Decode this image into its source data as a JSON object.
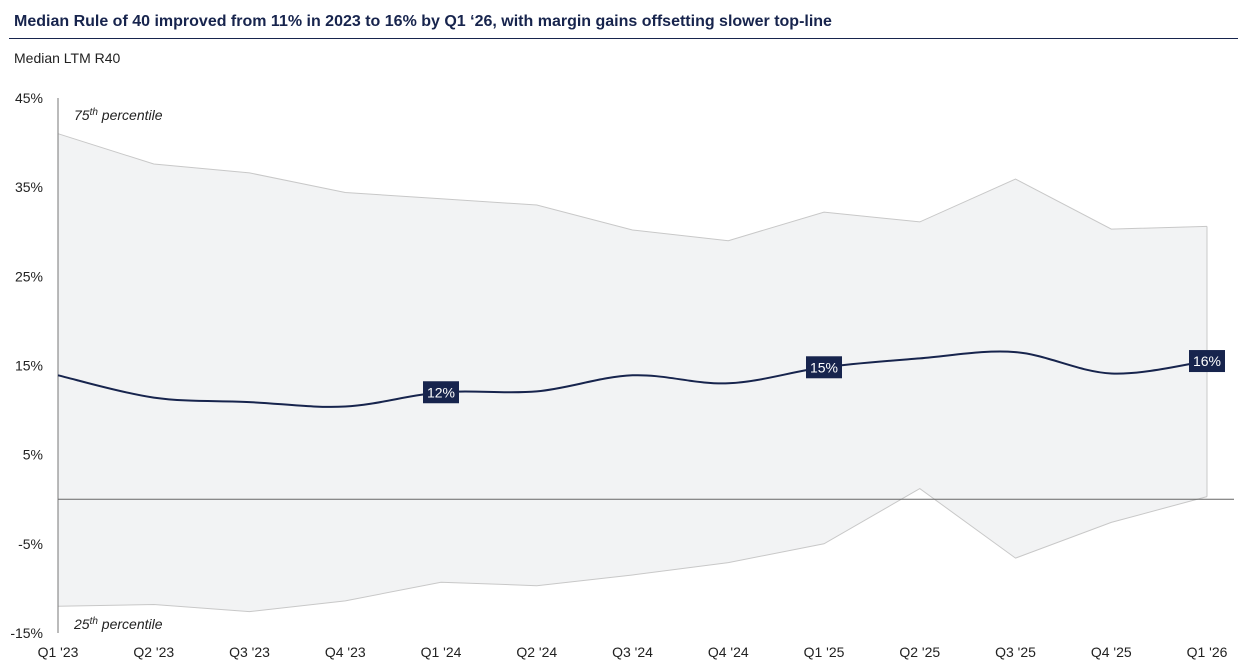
{
  "title": "Median Rule of 40 improved from 11% in 2023 to 16% by Q1 ‘26, with margin gains offsetting slower top-line",
  "subtitle": "Median LTM R40",
  "chart_data": {
    "type": "line",
    "categories": [
      "Q1 '23",
      "Q2 '23",
      "Q3 '23",
      "Q4 '23",
      "Q1 '24",
      "Q2 '24",
      "Q3 '24",
      "Q4 '24",
      "Q1 '25",
      "Q2 '25",
      "Q3 '25",
      "Q4 '25",
      "Q1 '26"
    ],
    "series": [
      {
        "name": "",
        "values": [
          13.9,
          11.4,
          10.9,
          10.4,
          12.0,
          12.1,
          13.9,
          13.0,
          14.8,
          15.8,
          16.5,
          14.1,
          15.5
        ]
      }
    ],
    "band": {
      "upper": [
        41.0,
        37.6,
        36.6,
        34.4,
        33.7,
        33.0,
        30.2,
        29.0,
        32.2,
        31.1,
        35.9,
        30.3,
        30.6
      ],
      "lower": [
        -12.0,
        -11.8,
        -12.6,
        -11.4,
        -9.3,
        -9.7,
        -8.5,
        -7.1,
        -5.0,
        1.2,
        -6.6,
        -2.6,
        0.3
      ],
      "upper_label": {
        "base": "75",
        "sup": "th",
        "rest": " percentile"
      },
      "lower_label": {
        "base": "25",
        "sup": "th",
        "rest": " percentile"
      }
    },
    "data_labels": [
      {
        "index": 4,
        "text": "12%"
      },
      {
        "index": 8,
        "text": "15%"
      },
      {
        "index": 12,
        "text": "16%"
      }
    ],
    "y_ticks": [
      {
        "value": 45,
        "label": "45%"
      },
      {
        "value": 35,
        "label": "35%"
      },
      {
        "value": 25,
        "label": "25%"
      },
      {
        "value": 15,
        "label": "15%"
      },
      {
        "value": 5,
        "label": "5%"
      },
      {
        "value": -5,
        "label": "-5%"
      },
      {
        "value": -15,
        "label": "-15%"
      }
    ],
    "ylim": [
      -15,
      45
    ],
    "grid": false,
    "zero_line": true,
    "colors": {
      "line": "#17244d",
      "band_fill": "#f2f3f4",
      "band_edge": "#c8c8c8",
      "label_bg": "#17244d",
      "axis": "#777777",
      "title": "#17244d"
    }
  }
}
